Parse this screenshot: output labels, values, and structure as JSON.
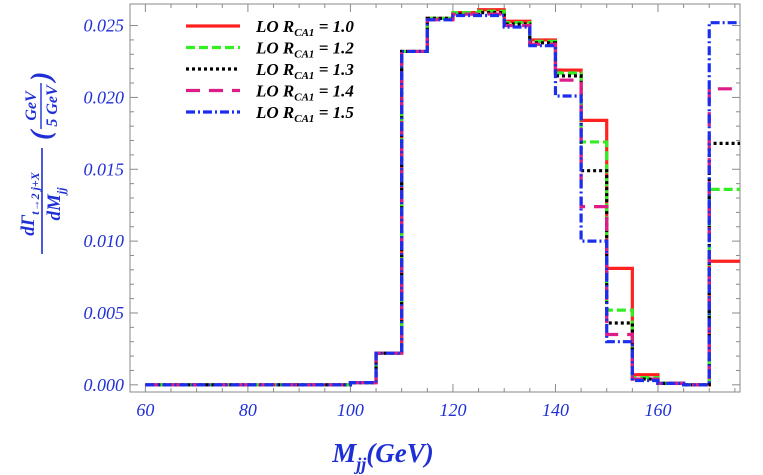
{
  "chart_data": {
    "type": "line",
    "title": "",
    "xlabel": {
      "main": "M",
      "sub": "jj",
      "rest": "(GeV)"
    },
    "ylabel": {
      "numerator": "dΓ",
      "numerator_sub": "t→2 j+X",
      "denominator": "dM",
      "denominator_sub": "jj",
      "paren_open": "(",
      "paren_close": ")",
      "frac_top": "GeV",
      "frac_bottom": "5 GeV"
    },
    "xlim": [
      57,
      176
    ],
    "ylim": [
      -0.0005,
      0.0265
    ],
    "x_ticks": [
      60,
      80,
      100,
      120,
      140,
      160
    ],
    "x_tick_labels": [
      "60",
      "80",
      "100",
      "120",
      "140",
      "160"
    ],
    "y_ticks": [
      0.0,
      0.005,
      0.01,
      0.015,
      0.02,
      0.025
    ],
    "y_tick_labels": [
      "0.000",
      "0.005",
      "0.010",
      "0.015",
      "0.020",
      "0.025"
    ],
    "bin_edges": [
      60,
      65,
      70,
      75,
      80,
      85,
      90,
      95,
      100,
      105,
      110,
      115,
      120,
      125,
      130,
      135,
      140,
      145,
      150,
      155,
      160,
      165,
      170,
      176
    ],
    "legend_position": "top-left",
    "series": [
      {
        "name": "LO R_CA1 = 1.0",
        "label_main": "LO R",
        "label_sub": "CA1",
        "label_value": " = 1.0",
        "color": "#ff2020",
        "dash": "solid",
        "values": [
          0,
          0,
          0,
          0,
          0,
          0,
          0,
          0,
          0.00015,
          0.0022,
          0.0232,
          0.0255,
          0.0259,
          0.0261,
          0.0253,
          0.024,
          0.0219,
          0.0184,
          0.0081,
          0.0007,
          0.0001,
          0.0,
          0.0086
        ]
      },
      {
        "name": "LO R_CA1 = 1.2",
        "label_main": "LO R",
        "label_sub": "CA1",
        "label_value": " = 1.2",
        "color": "#33ee22",
        "dash": "dashed",
        "values": [
          0,
          0,
          0,
          0,
          0,
          0,
          0,
          0,
          0.00015,
          0.0022,
          0.0232,
          0.0255,
          0.0259,
          0.026,
          0.0252,
          0.0239,
          0.0217,
          0.0169,
          0.0052,
          0.0005,
          0.0001,
          0.0,
          0.0136
        ]
      },
      {
        "name": "LO R_CA1 = 1.3",
        "label_main": "LO R",
        "label_sub": "CA1",
        "label_value": " = 1.3",
        "color": "#000000",
        "dash": "dotted",
        "values": [
          0,
          0,
          0,
          0,
          0,
          0,
          0,
          0,
          0.00015,
          0.0022,
          0.0232,
          0.0255,
          0.0258,
          0.0259,
          0.0251,
          0.0238,
          0.0215,
          0.0149,
          0.0043,
          0.0004,
          0.0001,
          0.0,
          0.0168
        ]
      },
      {
        "name": "LO R_CA1 = 1.4",
        "label_main": "LO R",
        "label_sub": "CA1",
        "label_value": " = 1.4",
        "color": "#dd1c88",
        "dash": "longdash",
        "values": [
          0,
          0,
          0,
          0,
          0,
          0,
          0,
          0,
          0.00015,
          0.0022,
          0.0232,
          0.0254,
          0.0258,
          0.0258,
          0.025,
          0.0237,
          0.0212,
          0.0124,
          0.0035,
          0.0004,
          0.0001,
          0.0,
          0.0206
        ]
      },
      {
        "name": "LO R_CA1 = 1.5",
        "label_main": "LO R",
        "label_sub": "CA1",
        "label_value": " = 1.5",
        "color": "#1a2ef0",
        "dash": "dashdot",
        "values": [
          0,
          0,
          0,
          0,
          0,
          0,
          0,
          0,
          0.00015,
          0.0022,
          0.0232,
          0.0254,
          0.0257,
          0.0257,
          0.0249,
          0.0236,
          0.0201,
          0.01,
          0.003,
          0.0003,
          0.0001,
          0.0,
          0.0252
        ]
      }
    ]
  }
}
